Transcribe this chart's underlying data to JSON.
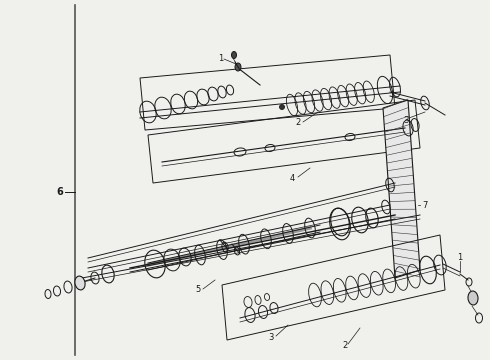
{
  "bg_color": "#f0f0ec",
  "line_color": "#1a1a1a",
  "fig_width": 4.9,
  "fig_height": 3.6,
  "dpi": 100
}
